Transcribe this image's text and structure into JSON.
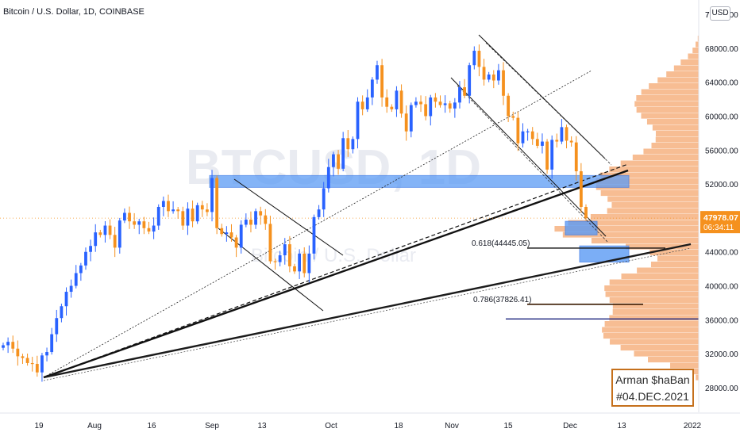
{
  "header": {
    "symbol_title": "Bitcoin / U.S. Dollar, 1D, COINBASE",
    "watermark_symbol": "BTCUSD, 1D",
    "watermark_name": "Bitcoin / U.S. Dollar",
    "currency_badge": "USD"
  },
  "price_axis": {
    "ticks": [
      "72000.00",
      "68000.00",
      "64000.00",
      "60000.00",
      "56000.00",
      "52000.00",
      "48000.00",
      "44000.00",
      "40000.00",
      "36000.00",
      "32000.00",
      "28000.00"
    ],
    "top_label": "72",
    "last_price_label": "47978.07",
    "countdown_label": "06:34:11"
  },
  "time_axis": {
    "labels": [
      "19",
      "Aug",
      "16",
      "Sep",
      "13",
      "Oct",
      "18",
      "Nov",
      "15",
      "Dec",
      "13",
      "2022"
    ]
  },
  "annotations": {
    "fib_0618": "0.618(44445.05)",
    "fib_0786": "0.786(37826.41)"
  },
  "signature": {
    "line1": "Arman $haBan",
    "line2": "#04.DEC.2021"
  },
  "colors": {
    "up": "#2962ff",
    "down": "#f5911e",
    "zone": "#5b9bf5",
    "volume_profile": "#f4a36a",
    "support_line": "#1a237e"
  },
  "chart_data": {
    "type": "candlestick",
    "title": "Bitcoin / U.S. Dollar, 1D, COINBASE",
    "xlabel": "",
    "ylabel": "",
    "ylim": [
      25500,
      73500
    ],
    "x": [
      "2021-07-12",
      "2021-12-08"
    ],
    "last_price": 47978.07,
    "horizontal_zone": [
      51600,
      53000
    ],
    "demand_zones": [
      [
        46000,
        47600
      ],
      [
        42800,
        44700
      ]
    ],
    "fib_levels": [
      {
        "label": "0.618",
        "price": 44445.05
      },
      {
        "label": "0.786",
        "price": 37826.41
      }
    ],
    "horizontal_level": 36100,
    "candles_close": [
      33000,
      33400,
      32600,
      31700,
      31500,
      30900,
      30800,
      29800,
      31800,
      32200,
      34300,
      36200,
      37600,
      39300,
      40000,
      41500,
      42400,
      44000,
      44700,
      46300,
      46000,
      47100,
      46000,
      44500,
      47700,
      48600,
      47600,
      47200,
      47600,
      46800,
      46400,
      47100,
      49300,
      50000,
      48800,
      49000,
      48800,
      47100,
      49100,
      47600,
      49500,
      49000,
      48700,
      52700,
      46800,
      46100,
      46300,
      45700,
      44500,
      47200,
      47800,
      47200,
      48800,
      48300,
      47300,
      42900,
      42800,
      43600,
      44900,
      42300,
      41700,
      43800,
      41500,
      43800,
      48100,
      49000,
      51500,
      54000,
      55500,
      53800,
      57400,
      56100,
      57300,
      61700,
      60800,
      62200,
      64300,
      66000,
      62200,
      61100,
      60800,
      63000,
      60300,
      58200,
      61300,
      61700,
      61400,
      60000,
      62200,
      61700,
      61300,
      61500,
      60900,
      61600,
      63400,
      62400,
      66000,
      67700,
      65800,
      64300,
      64900,
      64200,
      65400,
      62400,
      60000,
      59800,
      56800,
      58200,
      58200,
      57300,
      56500,
      57000,
      53700,
      57200,
      57000,
      58700,
      57100,
      56900,
      53500,
      49300,
      47978
    ]
  }
}
